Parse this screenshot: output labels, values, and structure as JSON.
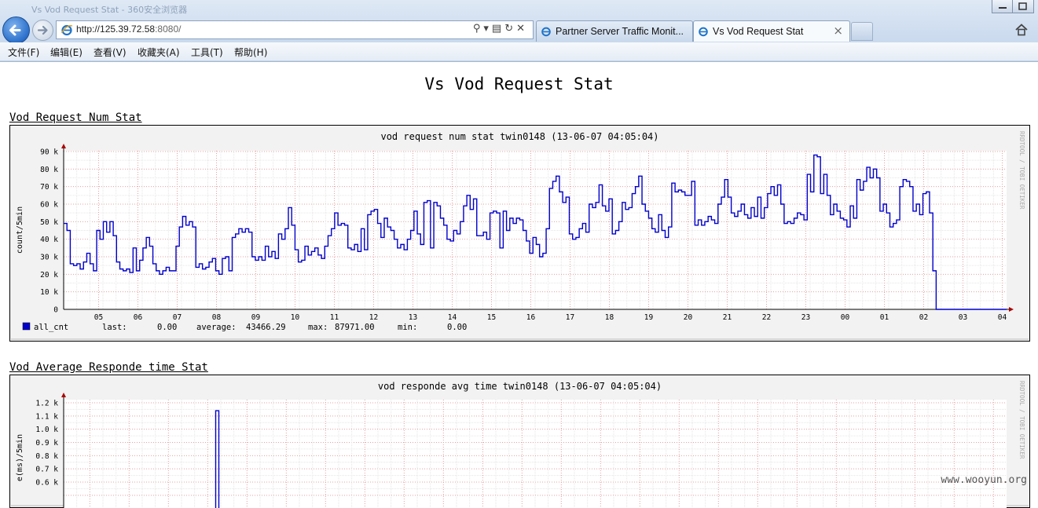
{
  "browser": {
    "window_title": "Vs Vod Request Stat - 360安全浏览器",
    "address_host": "http://125.39.72.58",
    "address_rest": ":8080/",
    "tabs": [
      {
        "label": "Partner Server Traffic Monit..."
      },
      {
        "label": "Vs Vod Request Stat",
        "close": "×"
      }
    ],
    "menu": [
      "文件(F)",
      "编辑(E)",
      "查看(V)",
      "收藏夹(A)",
      "工具(T)",
      "帮助(H)"
    ]
  },
  "page": {
    "title": "Vs Vod Request Stat",
    "section1_title": "Vod Request Num Stat",
    "section2_title": "Vod Average Responde time Stat"
  },
  "watermark": "www.wooyun.org",
  "chart_data": [
    {
      "type": "line",
      "title": "vod request num stat twin0148 (13-06-07 04:05:04)",
      "ylabel": "count/5min",
      "side_label": "RRDTOOL / TOBI OETIKER",
      "ylim": [
        0,
        90000
      ],
      "yticks": [
        "0",
        "10 k",
        "20 k",
        "30 k",
        "40 k",
        "50 k",
        "60 k",
        "70 k",
        "80 k",
        "90 k"
      ],
      "xticks": [
        "05",
        "06",
        "07",
        "08",
        "09",
        "10",
        "11",
        "12",
        "13",
        "14",
        "15",
        "16",
        "17",
        "18",
        "19",
        "20",
        "21",
        "22",
        "23",
        "00",
        "01",
        "02",
        "03",
        "04"
      ],
      "grid": true,
      "series": [
        {
          "name": "all_cnt",
          "color": "#0000cc",
          "values": [
            49000,
            45000,
            26000,
            25000,
            26000,
            23000,
            27000,
            32000,
            26000,
            22000,
            45000,
            40000,
            50000,
            44000,
            50000,
            42000,
            27000,
            23000,
            22000,
            23000,
            21000,
            35000,
            22000,
            28000,
            35000,
            41000,
            36000,
            26000,
            22000,
            20000,
            22000,
            24000,
            22000,
            22000,
            36000,
            47000,
            53000,
            48000,
            50000,
            47000,
            24000,
            26000,
            23000,
            24000,
            27000,
            29000,
            22000,
            20000,
            29000,
            30000,
            22000,
            41000,
            43000,
            46000,
            44000,
            46000,
            44000,
            30000,
            28000,
            30000,
            28000,
            36000,
            30000,
            33000,
            29000,
            43000,
            40000,
            46000,
            58000,
            48000,
            34000,
            27000,
            28000,
            36000,
            31000,
            33000,
            35000,
            31000,
            29000,
            36000,
            42000,
            46000,
            55000,
            48000,
            49000,
            48000,
            35000,
            34000,
            37000,
            33000,
            46000,
            34000,
            54000,
            56000,
            57000,
            49000,
            41000,
            52000,
            47000,
            45000,
            40000,
            35000,
            37000,
            34000,
            40000,
            45000,
            56000,
            43000,
            37000,
            61000,
            62000,
            35000,
            61000,
            59000,
            52000,
            48000,
            40000,
            39000,
            45000,
            43000,
            50000,
            59000,
            65000,
            57000,
            63000,
            42000,
            42000,
            44000,
            40000,
            55000,
            56000,
            55000,
            35000,
            56000,
            45000,
            52000,
            49000,
            52000,
            51000,
            45000,
            39000,
            32000,
            41000,
            37000,
            30000,
            32000,
            46000,
            69000,
            73000,
            76000,
            67000,
            61000,
            64000,
            43000,
            40000,
            41000,
            46000,
            49000,
            44000,
            60000,
            58000,
            61000,
            71000,
            59000,
            56000,
            63000,
            43000,
            45000,
            50000,
            61000,
            57000,
            58000,
            66000,
            70000,
            76000,
            60000,
            56000,
            52000,
            46000,
            44000,
            54000,
            45000,
            41000,
            47000,
            72000,
            67000,
            68000,
            67000,
            65000,
            65000,
            73000,
            48000,
            51000,
            48000,
            50000,
            53000,
            51000,
            49000,
            60000,
            64000,
            74000,
            64000,
            55000,
            53000,
            56000,
            60000,
            54000,
            52000,
            58000,
            53000,
            64000,
            52000,
            58000,
            66000,
            70000,
            65000,
            71000,
            60000,
            49000,
            50000,
            49000,
            52000,
            55000,
            54000,
            51000,
            77000,
            67000,
            88000,
            87000,
            66000,
            77000,
            65000,
            54000,
            60000,
            56000,
            52000,
            51000,
            47000,
            59000,
            52000,
            74000,
            68000,
            73000,
            81000,
            75000,
            80000,
            75000,
            56000,
            60000,
            55000,
            47000,
            49000,
            51000,
            70000,
            74000,
            73000,
            70000,
            56000,
            60000,
            54000,
            66000,
            67000,
            55000,
            22000,
            0,
            0,
            0,
            0,
            0,
            0,
            0,
            0,
            0,
            0,
            0,
            0,
            0,
            0,
            0,
            0,
            0,
            0,
            0,
            0,
            0,
            0,
            0,
            0,
            0,
            0,
            0,
            0,
            0,
            0,
            0,
            0
          ],
          "last": "0.00",
          "average": "43466.29",
          "max": "87971.00",
          "min": "0.00"
        }
      ],
      "legend_labels": {
        "last": "last:",
        "average": "average:",
        "max": "max:",
        "min": "min:"
      }
    },
    {
      "type": "line",
      "title": "vod responde avg time  twin0148 (13-06-07 04:05:04)",
      "ylabel": "e(ms)/5min",
      "side_label": "RRDTOOL / TOBI OETIKER",
      "ylim": [
        0,
        1200
      ],
      "yticks": [
        "0.6 k",
        "0.7 k",
        "0.8 k",
        "0.9 k",
        "1.0 k",
        "1.1 k",
        "1.2 k"
      ],
      "ytick_values": [
        600,
        700,
        800,
        900,
        1000,
        1100,
        1200
      ],
      "grid": true,
      "series": [
        {
          "name": "",
          "color": "#0000cc",
          "spike_hour": "08",
          "spike_value": 1140
        }
      ]
    }
  ]
}
